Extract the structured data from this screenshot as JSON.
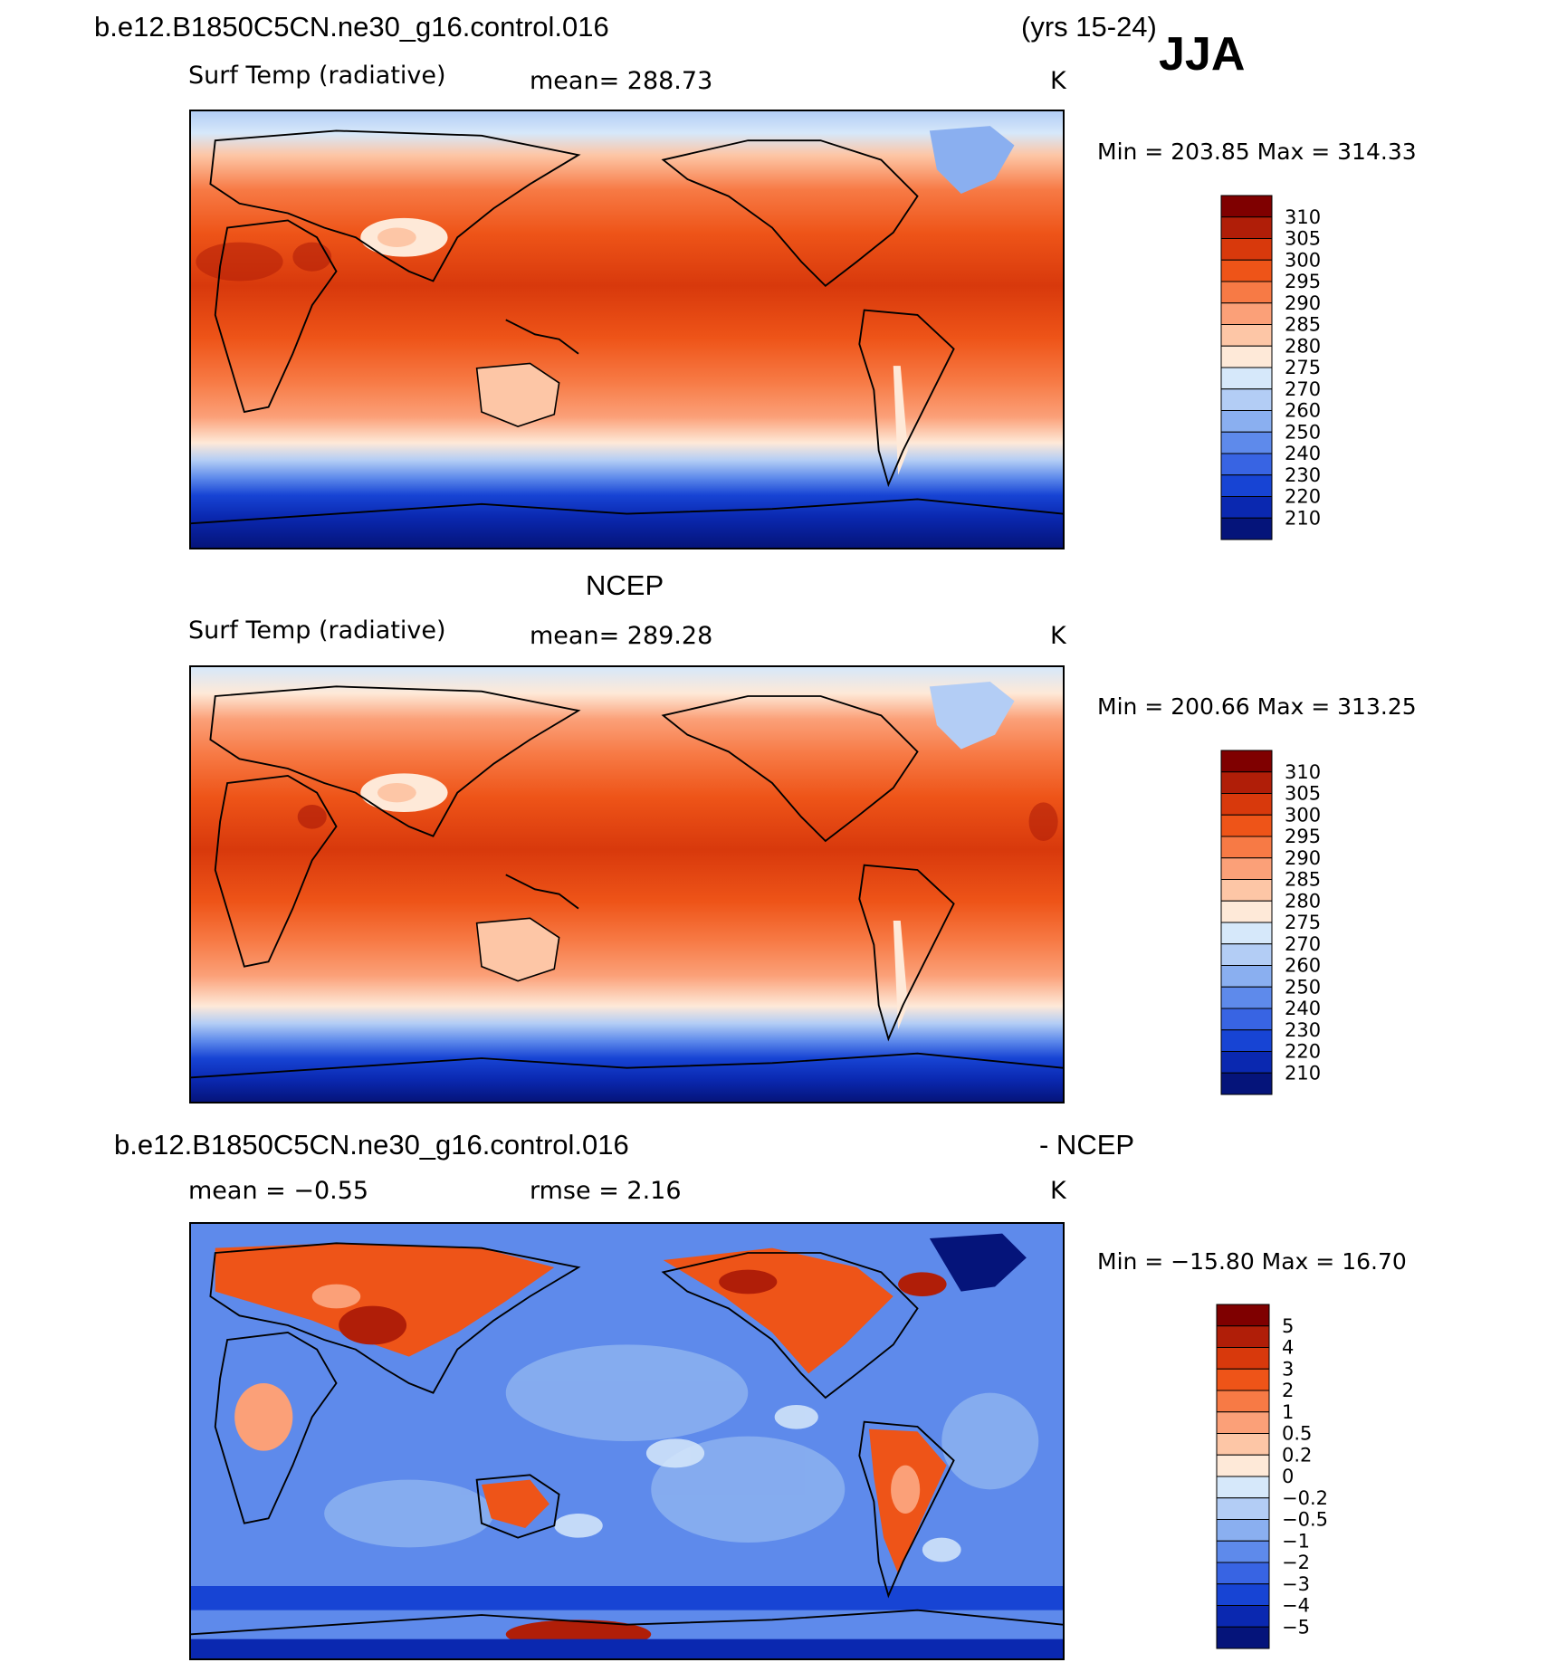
{
  "header": {
    "case": "b.e12.B1850C5CN.ne30_g16.control.016",
    "years": "(yrs 15-24)",
    "season": "JJA"
  },
  "panels": [
    {
      "id": "model",
      "title": "",
      "field": "Surf Temp (radiative)",
      "stat": "mean=  288.73",
      "units": "K",
      "minmax": "Min  =  203.85  Max  =  314.33"
    },
    {
      "id": "obs",
      "title": "NCEP",
      "field": "Surf Temp (radiative)",
      "stat": "mean=  289.28",
      "units": "K",
      "minmax": "Min  =  200.66  Max  =  313.25"
    },
    {
      "id": "diff",
      "title_left": "b.e12.B1850C5CN.ne30_g16.control.016",
      "title_right": "- NCEP",
      "field": "mean  =    −0.55",
      "stat": "rmse  =     2.16",
      "units": "K",
      "minmax": "Min  =  −15.80  Max  =    16.70"
    }
  ],
  "colorbars": {
    "temperature": {
      "labels": [
        "310",
        "305",
        "300",
        "295",
        "290",
        "285",
        "280",
        "275",
        "270",
        "260",
        "250",
        "240",
        "230",
        "220",
        "210"
      ],
      "colors": [
        "#7f0000",
        "#b01e08",
        "#d8390c",
        "#ee5418",
        "#f77a45",
        "#fba078",
        "#fdc6a6",
        "#fee9d8",
        "#d6e8fa",
        "#b3cdf5",
        "#8aaff0",
        "#5e8aeb",
        "#3864e3",
        "#1744d4",
        "#0a28b0",
        "#05147a"
      ]
    },
    "difference": {
      "labels": [
        "5",
        "4",
        "3",
        "2",
        "1",
        "0.5",
        "0.2",
        "0",
        "−0.2",
        "−0.5",
        "−1",
        "−2",
        "−3",
        "−4",
        "−5"
      ],
      "colors": [
        "#7f0000",
        "#b01e08",
        "#d8390c",
        "#ee5418",
        "#f77a45",
        "#fba078",
        "#fdc6a6",
        "#fee9d8",
        "#d6e8fa",
        "#b3cdf5",
        "#8aaff0",
        "#5e8aeb",
        "#3864e3",
        "#1744d4",
        "#0a28b0",
        "#05147a"
      ]
    }
  }
}
